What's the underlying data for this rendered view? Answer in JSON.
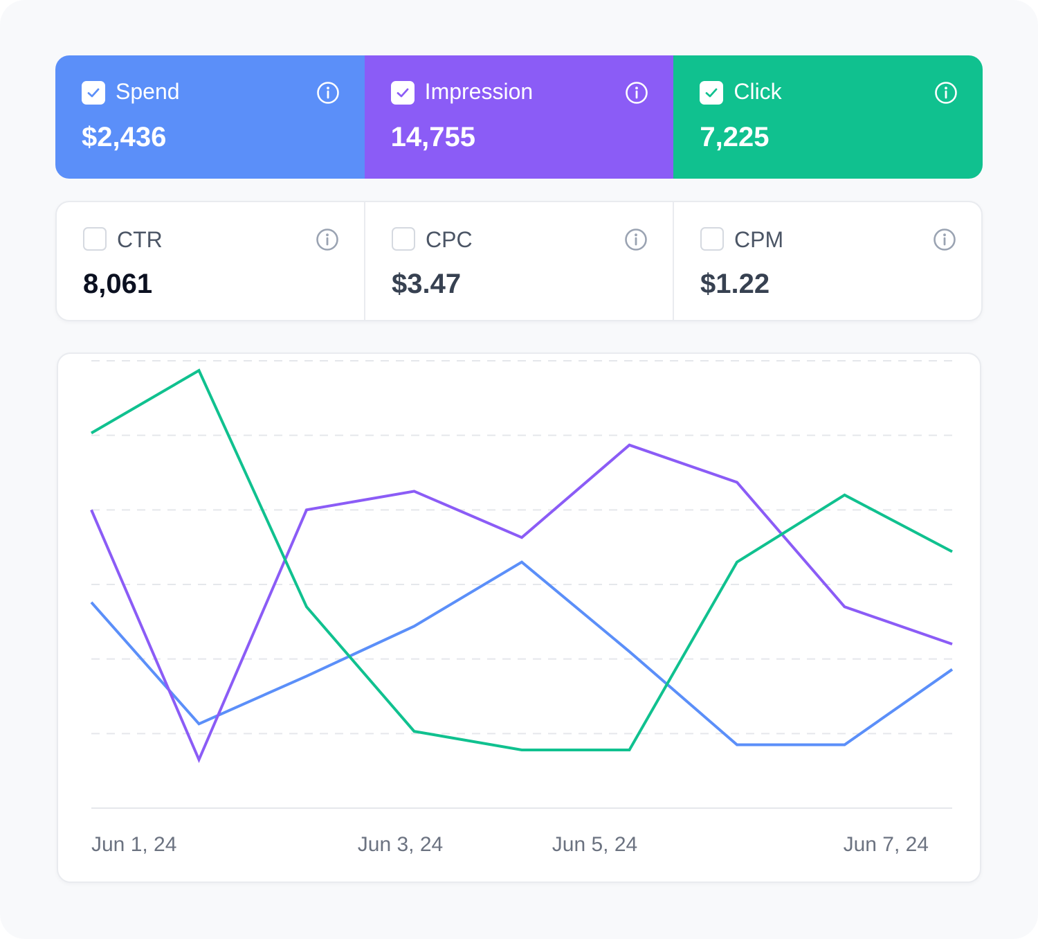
{
  "colors": {
    "spend": "#5b8ff9",
    "impression": "#8b5cf6",
    "click": "#10c18f",
    "grid": "#e5e7eb",
    "muted_text": "#6b7280"
  },
  "metrics_top": [
    {
      "label": "Spend",
      "value": "$2,436",
      "checked": true,
      "color": "#5b8ff9",
      "icon": "info-icon"
    },
    {
      "label": "Impression",
      "value": "14,755",
      "checked": true,
      "color": "#8b5cf6",
      "icon": "info-icon"
    },
    {
      "label": "Click",
      "value": "7,225",
      "checked": true,
      "color": "#10c18f",
      "icon": "info-icon"
    }
  ],
  "metrics_bottom": [
    {
      "label": "CTR",
      "value": "8,061",
      "checked": false,
      "value_color": "#0b1020",
      "icon": "info-icon"
    },
    {
      "label": "CPC",
      "value": "$3.47",
      "checked": false,
      "value_color": "#374151",
      "icon": "info-icon"
    },
    {
      "label": "CPM",
      "value": "$1.22",
      "checked": false,
      "value_color": "#374151",
      "icon": "info-icon"
    }
  ],
  "chart_data": {
    "type": "line",
    "x": [
      "2024-06-01",
      "2024-06-02",
      "2024-06-03",
      "2024-06-04",
      "2024-06-05",
      "2024-06-06",
      "2024-06-07",
      "2024-06-08",
      "2024-06-09"
    ],
    "tick_labels": [
      "Jun 1, 24",
      "Jun 3, 24",
      "Jun 5, 24",
      "Jun 7, 24"
    ],
    "grid": true,
    "series": [
      {
        "name": "Spend",
        "color": "#5b8ff9",
        "values": [
          2.76,
          1.13,
          1.77,
          2.44,
          3.3,
          2.1,
          0.85,
          0.85,
          1.86
        ]
      },
      {
        "name": "Impression",
        "color": "#8b5cf6",
        "values": [
          4.0,
          0.65,
          4.0,
          4.25,
          3.63,
          4.87,
          4.37,
          2.7,
          2.2
        ]
      },
      {
        "name": "Click",
        "color": "#10c18f",
        "values": [
          5.03,
          5.87,
          2.7,
          1.03,
          0.78,
          0.78,
          3.3,
          4.2,
          3.44
        ]
      }
    ]
  }
}
